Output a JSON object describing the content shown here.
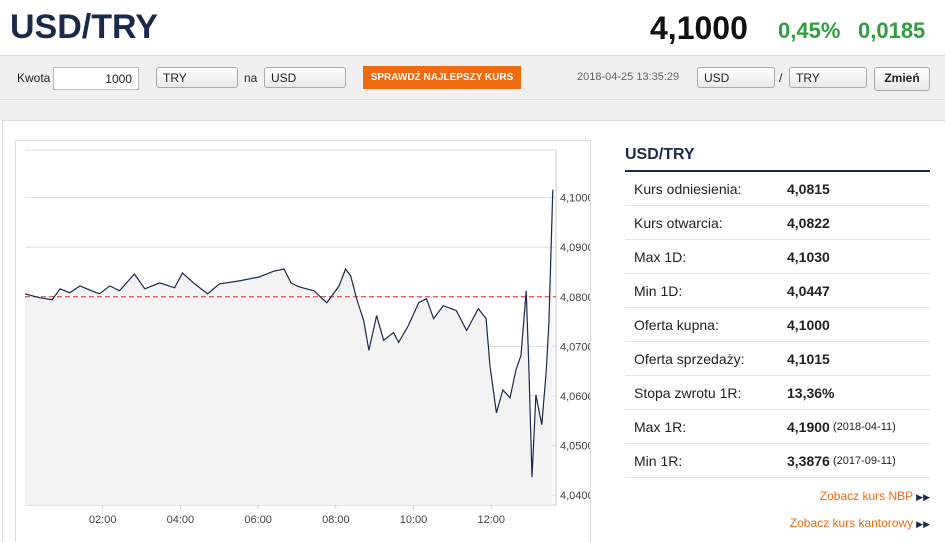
{
  "header": {
    "title": "USD/TRY",
    "price": "4,1000",
    "change_pct": "0,45%",
    "change": "0,0185"
  },
  "toolbar": {
    "amount_label": "Kwota",
    "amount": "1000",
    "from": "TRY",
    "to_label": "na",
    "to": "USD",
    "button": "SPRAWDŹ NAJLEPSZY KURS",
    "timestamp": "2018-04-25 13:35:29",
    "pair_base": "USD",
    "separator": "/",
    "pair_quote": "TRY",
    "switch": "Zmień"
  },
  "chart": {
    "type": "line",
    "color": "#1b2a4a",
    "area_color": "#f3f3f3",
    "grid": true,
    "x": [
      0,
      23,
      42,
      54,
      69,
      85,
      103,
      115,
      131,
      146,
      169,
      185,
      208,
      231,
      243,
      262,
      282,
      300,
      331,
      362,
      385,
      400,
      411,
      423,
      446,
      466,
      485,
      495,
      503,
      512,
      523,
      531,
      543,
      554,
      569,
      577,
      592,
      608,
      620,
      631,
      646,
      666,
      682,
      700,
      712,
      718,
      728,
      738,
      749,
      758,
      766,
      774,
      778,
      783,
      789,
      798,
      805,
      809,
      815
    ],
    "values": [
      4.0806,
      4.0798,
      4.0794,
      4.0816,
      4.0808,
      4.0822,
      4.0812,
      4.0806,
      4.0822,
      4.0812,
      4.0846,
      4.0816,
      4.0828,
      4.0818,
      4.0848,
      4.0826,
      4.0806,
      4.0826,
      4.0832,
      4.084,
      4.0852,
      4.0856,
      4.0828,
      4.082,
      4.0812,
      4.0788,
      4.0822,
      4.0856,
      4.0842,
      4.0796,
      4.0752,
      4.0692,
      4.0762,
      4.0712,
      4.0728,
      4.0708,
      4.0742,
      4.0788,
      4.0796,
      4.0756,
      4.0782,
      4.0772,
      4.0732,
      4.0776,
      4.0756,
      4.0662,
      4.0566,
      4.0612,
      4.0596,
      4.0652,
      4.0682,
      4.0812,
      4.0662,
      4.0436,
      4.0602,
      4.0542,
      4.0652,
      4.0748,
      4.1016
    ],
    "reference_line": {
      "value": 4.08,
      "color": "#d9352e"
    },
    "xlim": [
      0,
      820
    ],
    "xticks": [
      {
        "value": 120,
        "label": "02:00"
      },
      {
        "value": 240,
        "label": "04:00"
      },
      {
        "value": 360,
        "label": "06:00"
      },
      {
        "value": 480,
        "label": "08:00"
      },
      {
        "value": 600,
        "label": "10:00"
      },
      {
        "value": 720,
        "label": "12:00"
      }
    ],
    "ylim": [
      4.038,
      4.1096
    ],
    "yticks": [
      {
        "value": 4.04,
        "label": "4,0400"
      },
      {
        "value": 4.05,
        "label": "4,0500"
      },
      {
        "value": 4.06,
        "label": "4,0600"
      },
      {
        "value": 4.07,
        "label": "4,0700"
      },
      {
        "value": 4.08,
        "label": "4,0800"
      },
      {
        "value": 4.09,
        "label": "4,0900"
      },
      {
        "value": 4.1,
        "label": "4,1000"
      }
    ]
  },
  "panel": {
    "title": "USD/TRY",
    "rows": [
      {
        "label": "Kurs odniesienia:",
        "value": "4,0815"
      },
      {
        "label": "Kurs otwarcia:",
        "value": "4,0822"
      },
      {
        "label": "Max 1D:",
        "value": "4,1030"
      },
      {
        "label": "Min 1D:",
        "value": "4,0447"
      },
      {
        "label": "Oferta kupna:",
        "value": "4,1000"
      },
      {
        "label": "Oferta sprzedaży:",
        "value": "4,1015"
      },
      {
        "label": "Stopa zwrotu 1R:",
        "value": "13,36%"
      },
      {
        "label": "Max 1R:",
        "value": "4,1900",
        "extra": "(2018-04-11)"
      },
      {
        "label": "Min 1R:",
        "value": "3,3876",
        "extra": "(2017-09-11)"
      }
    ],
    "links": [
      "Zobacz kurs NBP",
      "Zobacz kurs kantorowy"
    ]
  }
}
